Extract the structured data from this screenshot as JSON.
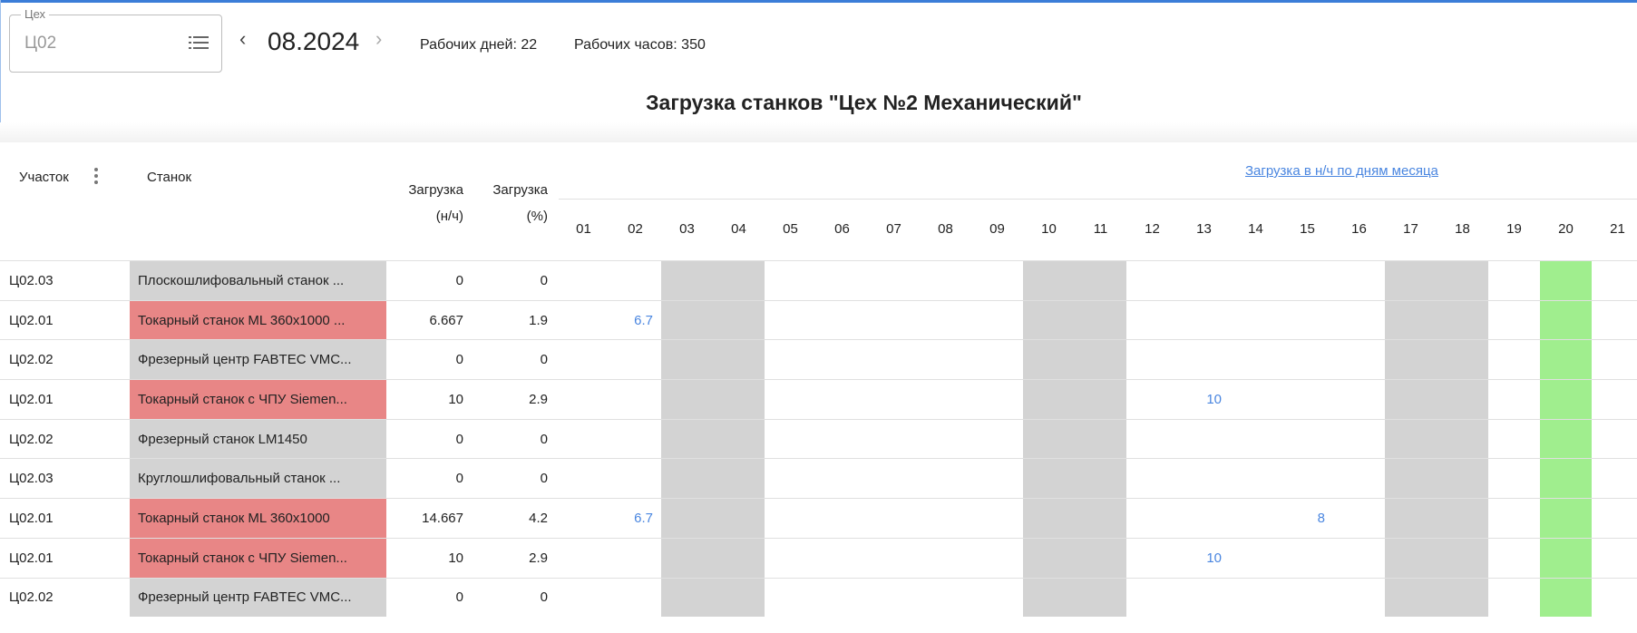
{
  "header": {
    "shop_label": "Цех",
    "shop_value": "Ц02",
    "period": "08.2024",
    "working_days": "Рабочих дней: 22",
    "working_hours": "Рабочих часов: 350",
    "title": "Загрузка станков \"Цех №2 Механический\""
  },
  "colors": {
    "weekend": "#d3d3d3",
    "today": "#a0ee8e",
    "overloaded": "#e88686",
    "normal": "#d3d3d3",
    "value_link": "#4a86e0",
    "accent": "#3b7dd8"
  },
  "table": {
    "columns": {
      "section": "Участок",
      "machine": "Станок",
      "load_h_1": "Загрузка",
      "load_h_2": "(н/ч)",
      "load_p_1": "Загрузка",
      "load_p_2": "(%)",
      "days_group": "Загрузка в н/ч по дням месяца"
    },
    "days": [
      "01",
      "02",
      "03",
      "04",
      "05",
      "06",
      "07",
      "08",
      "09",
      "10",
      "11",
      "12",
      "13",
      "14",
      "15",
      "16",
      "17",
      "18",
      "19",
      "20",
      "21"
    ],
    "weekend_days": [
      "03",
      "04",
      "10",
      "11",
      "17",
      "18"
    ],
    "today": "20",
    "rows": [
      {
        "section": "Ц02.03",
        "machine": "Плоскошлифовальный станок ...",
        "hours": "0",
        "percent": "0",
        "status": "normal",
        "values": {}
      },
      {
        "section": "Ц02.01",
        "machine": "Токарный станок ML 360x1000 ...",
        "hours": "6.667",
        "percent": "1.9",
        "status": "overloaded",
        "values": {
          "02": "6.7"
        }
      },
      {
        "section": "Ц02.02",
        "machine": "Фрезерный центр FABTEC VMC...",
        "hours": "0",
        "percent": "0",
        "status": "normal",
        "values": {}
      },
      {
        "section": "Ц02.01",
        "machine": "Токарный станок с ЧПУ Siemen...",
        "hours": "10",
        "percent": "2.9",
        "status": "overloaded",
        "values": {
          "13": "10"
        }
      },
      {
        "section": "Ц02.02",
        "machine": "Фрезерный станок LM1450",
        "hours": "0",
        "percent": "0",
        "status": "normal",
        "values": {}
      },
      {
        "section": "Ц02.03",
        "machine": "Круглошлифовальный станок ...",
        "hours": "0",
        "percent": "0",
        "status": "normal",
        "values": {}
      },
      {
        "section": "Ц02.01",
        "machine": "Токарный станок ML 360x1000",
        "hours": "14.667",
        "percent": "4.2",
        "status": "overloaded",
        "values": {
          "02": "6.7",
          "15": "8"
        }
      },
      {
        "section": "Ц02.01",
        "machine": "Токарный станок с ЧПУ Siemen...",
        "hours": "10",
        "percent": "2.9",
        "status": "overloaded",
        "values": {
          "13": "10"
        }
      },
      {
        "section": "Ц02.02",
        "machine": "Фрезерный центр FABTEC VMC...",
        "hours": "0",
        "percent": "0",
        "status": "normal",
        "values": {}
      }
    ]
  }
}
